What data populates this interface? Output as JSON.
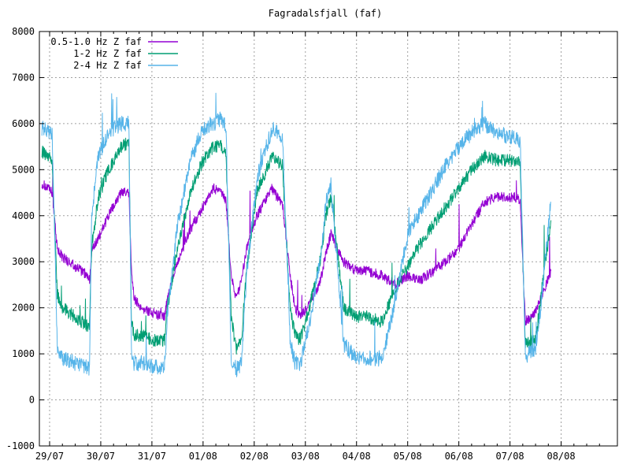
{
  "chart_data": {
    "type": "line",
    "title": "Fagradalsfjall (faf)",
    "xlabel": "",
    "ylabel": "",
    "ylim": [
      -1000,
      8000
    ],
    "yticks": [
      -1000,
      0,
      1000,
      2000,
      3000,
      4000,
      5000,
      6000,
      7000,
      8000
    ],
    "xlim": [
      -0.2,
      11.1
    ],
    "xticks": [
      {
        "x": 0,
        "label": "29/07"
      },
      {
        "x": 1,
        "label": "30/07"
      },
      {
        "x": 2,
        "label": "31/07"
      },
      {
        "x": 3,
        "label": "01/08"
      },
      {
        "x": 4,
        "label": "02/08"
      },
      {
        "x": 5,
        "label": "03/08"
      },
      {
        "x": 6,
        "label": "04/08"
      },
      {
        "x": 7,
        "label": "05/08"
      },
      {
        "x": 8,
        "label": "06/08"
      },
      {
        "x": 9,
        "label": "07/08"
      },
      {
        "x": 10,
        "label": "08/08"
      }
    ],
    "grid": true,
    "legend_position": "top-left",
    "series": [
      {
        "name": "0.5-1.0 Hz Z faf",
        "color": "#9400d3",
        "x": [
          -0.15,
          0.05,
          0.15,
          0.25,
          0.5,
          0.75,
          0.78,
          0.82,
          0.95,
          1.15,
          1.4,
          1.55,
          1.6,
          1.65,
          1.8,
          2.0,
          2.2,
          2.25,
          2.3,
          2.5,
          2.75,
          3.0,
          3.2,
          3.35,
          3.45,
          3.55,
          3.65,
          3.75,
          3.85,
          4.05,
          4.35,
          4.45,
          4.55,
          4.7,
          4.8,
          4.9,
          5.1,
          5.3,
          5.4,
          5.5,
          5.75,
          6.0,
          6.2,
          6.5,
          6.75,
          7.0,
          7.25,
          7.5,
          7.75,
          8.0,
          8.25,
          8.5,
          8.75,
          9.0,
          9.15,
          9.2,
          9.3,
          9.5,
          9.6,
          9.8
        ],
        "y": [
          4700,
          4500,
          3300,
          3100,
          2900,
          2700,
          2600,
          3200,
          3500,
          4000,
          4500,
          4500,
          2800,
          2200,
          2000,
          1900,
          1800,
          1800,
          2200,
          3000,
          3700,
          4200,
          4600,
          4500,
          4300,
          2700,
          2200,
          2600,
          3300,
          4000,
          4600,
          4400,
          4300,
          2700,
          2000,
          1800,
          2100,
          2600,
          3200,
          3600,
          3000,
          2800,
          2800,
          2700,
          2500,
          2700,
          2600,
          2800,
          3000,
          3300,
          3800,
          4300,
          4400,
          4400,
          4400,
          4300,
          1700,
          1900,
          2200,
          2800
        ]
      },
      {
        "name": "1-2 Hz Z faf",
        "color": "#009e73",
        "x": [
          -0.15,
          0.05,
          0.15,
          0.25,
          0.5,
          0.75,
          0.78,
          0.82,
          0.95,
          1.15,
          1.4,
          1.55,
          1.6,
          1.65,
          1.8,
          2.0,
          2.2,
          2.25,
          2.3,
          2.5,
          2.75,
          3.0,
          3.2,
          3.35,
          3.45,
          3.55,
          3.65,
          3.75,
          3.85,
          4.05,
          4.35,
          4.45,
          4.55,
          4.7,
          4.8,
          4.9,
          5.1,
          5.3,
          5.4,
          5.5,
          5.75,
          6.0,
          6.2,
          6.5,
          6.75,
          7.0,
          7.25,
          7.5,
          7.75,
          8.0,
          8.25,
          8.5,
          8.75,
          9.0,
          9.15,
          9.2,
          9.3,
          9.5,
          9.6,
          9.8
        ],
        "y": [
          5400,
          5200,
          2300,
          2000,
          1800,
          1600,
          1600,
          3300,
          4400,
          5000,
          5500,
          5600,
          1700,
          1400,
          1400,
          1300,
          1300,
          1300,
          2000,
          3300,
          4500,
          5200,
          5500,
          5500,
          5300,
          1800,
          1100,
          1300,
          2800,
          4500,
          5300,
          5200,
          5100,
          2000,
          1400,
          1300,
          2100,
          3100,
          4000,
          4400,
          2000,
          1800,
          1800,
          1700,
          2400,
          2900,
          3400,
          3800,
          4200,
          4600,
          5000,
          5300,
          5200,
          5200,
          5200,
          5100,
          1200,
          1300,
          2200,
          3900
        ]
      },
      {
        "name": "2-4 Hz Z faf",
        "color": "#56b4e9",
        "x": [
          -0.15,
          0.05,
          0.15,
          0.25,
          0.5,
          0.75,
          0.78,
          0.82,
          0.95,
          1.15,
          1.4,
          1.55,
          1.6,
          1.65,
          1.8,
          2.0,
          2.2,
          2.25,
          2.3,
          2.5,
          2.75,
          3.0,
          3.2,
          3.35,
          3.45,
          3.55,
          3.65,
          3.75,
          3.85,
          4.05,
          4.35,
          4.45,
          4.55,
          4.7,
          4.8,
          4.9,
          5.1,
          5.3,
          5.4,
          5.5,
          5.75,
          6.0,
          6.2,
          6.5,
          6.75,
          7.0,
          7.25,
          7.5,
          7.75,
          8.0,
          8.25,
          8.5,
          8.75,
          9.0,
          9.15,
          9.2,
          9.3,
          9.5,
          9.6,
          9.8
        ],
        "y": [
          5900,
          5800,
          1100,
          900,
          800,
          700,
          700,
          4000,
          5300,
          5800,
          6000,
          6000,
          1000,
          800,
          800,
          750,
          700,
          800,
          1800,
          3800,
          5200,
          5900,
          6000,
          6100,
          5900,
          900,
          650,
          800,
          2700,
          4800,
          5900,
          5800,
          5700,
          1300,
          800,
          750,
          1800,
          3100,
          4300,
          4700,
          1200,
          900,
          900,
          900,
          2100,
          3600,
          4100,
          4600,
          5100,
          5500,
          5800,
          6000,
          5800,
          5700,
          5700,
          5600,
          950,
          1100,
          2000,
          4300
        ]
      }
    ]
  }
}
